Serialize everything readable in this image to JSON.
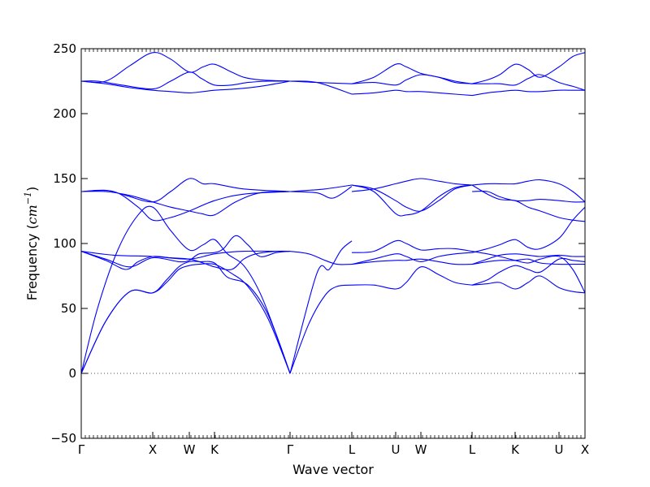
{
  "chart_data": {
    "type": "line",
    "xlabel": "Wave vector",
    "ylabel_main": "Frequency (",
    "ylabel_unit_base": "cm",
    "ylabel_unit_sup": "−1",
    "ylabel_close": ")",
    "ylim": [
      -50,
      250
    ],
    "yticks": [
      -50,
      0,
      50,
      100,
      150,
      200,
      250
    ],
    "grid": false,
    "zero_line": true,
    "line_color": "#0000ff",
    "zero_line_color": "#555555",
    "xlim": [
      0,
      620
    ],
    "xticks": [
      {
        "x": 0,
        "label": "Γ"
      },
      {
        "x": 88,
        "label": "X"
      },
      {
        "x": 133,
        "label": "W"
      },
      {
        "x": 164,
        "label": "K"
      },
      {
        "x": 257,
        "label": "Γ"
      },
      {
        "x": 333,
        "label": "L"
      },
      {
        "x": 387,
        "label": "U"
      },
      {
        "x": 418,
        "label": "W"
      },
      {
        "x": 481,
        "label": "L"
      },
      {
        "x": 534,
        "label": "K"
      },
      {
        "x": 588,
        "label": "U"
      },
      {
        "x": 620,
        "label": "X"
      }
    ],
    "series": [
      {
        "x": [
          0,
          30,
          60,
          88,
          105,
          120,
          133,
          145,
          164,
          185,
          205,
          230,
          257
        ],
        "y": [
          0,
          40,
          63,
          62,
          70,
          80,
          83,
          84,
          84,
          77,
          67,
          42,
          0
        ]
      },
      {
        "x": [
          0,
          30,
          60,
          88,
          105,
          120,
          133,
          145,
          164,
          180,
          205,
          230,
          257
        ],
        "y": [
          0,
          40,
          63,
          62,
          72,
          82,
          86,
          86,
          85,
          74,
          68,
          45,
          0
        ]
      },
      {
        "x": [
          0,
          20,
          45,
          70,
          88,
          110,
          133,
          150,
          164,
          180,
          200,
          220,
          240,
          257
        ],
        "y": [
          0,
          50,
          95,
          122,
          128,
          110,
          95,
          99,
          103,
          92,
          83,
          62,
          30,
          0
        ]
      },
      {
        "x": [
          0,
          30,
          55,
          70,
          88,
          110,
          133,
          150,
          164,
          185,
          200,
          215,
          240,
          257
        ],
        "y": [
          94,
          87,
          80,
          86,
          90,
          89,
          88,
          85,
          82,
          80,
          88,
          92,
          94,
          94
        ]
      },
      {
        "x": [
          0,
          30,
          60,
          88,
          120,
          133,
          145,
          164,
          175,
          190,
          205,
          220,
          240,
          257
        ],
        "y": [
          94,
          88,
          82,
          89,
          86,
          87,
          92,
          93,
          96,
          106,
          99,
          90,
          93,
          94
        ]
      },
      {
        "x": [
          0,
          40,
          88,
          133,
          164,
          200,
          257
        ],
        "y": [
          94,
          91,
          90,
          88,
          92,
          94,
          94
        ]
      },
      {
        "x": [
          0,
          30,
          60,
          88,
          110,
          133,
          148,
          164,
          190,
          220,
          257
        ],
        "y": [
          140,
          140,
          137,
          132,
          128,
          125,
          123,
          122,
          132,
          139,
          140
        ]
      },
      {
        "x": [
          0,
          30,
          55,
          88,
          110,
          133,
          150,
          164,
          200,
          257
        ],
        "y": [
          140,
          141,
          137,
          132,
          140,
          150,
          146,
          146,
          142,
          140
        ]
      },
      {
        "x": [
          0,
          40,
          70,
          88,
          110,
          133,
          164,
          200,
          257
        ],
        "y": [
          140,
          140,
          128,
          118,
          120,
          125,
          133,
          138,
          140
        ]
      },
      {
        "x": [
          0,
          30,
          60,
          88,
          110,
          133,
          150,
          164,
          185,
          200,
          220,
          257
        ],
        "y": [
          225,
          225,
          237,
          247,
          242,
          232,
          236,
          238,
          232,
          228,
          226,
          225
        ]
      },
      {
        "x": [
          0,
          20,
          50,
          88,
          110,
          133,
          148,
          164,
          185,
          205,
          230,
          257
        ],
        "y": [
          225,
          225,
          222,
          219,
          225,
          232,
          227,
          222,
          222,
          224,
          225,
          225
        ]
      },
      {
        "x": [
          0,
          30,
          60,
          88,
          110,
          133,
          150,
          164,
          190,
          220,
          257
        ],
        "y": [
          225,
          223,
          220,
          218,
          217,
          216,
          217,
          218,
          219,
          221,
          225
        ]
      },
      {
        "x": [
          257,
          280,
          300,
          315,
          333
        ],
        "y": [
          0,
          38,
          60,
          67,
          68
        ]
      },
      {
        "x": [
          257,
          290,
          305,
          320,
          333
        ],
        "y": [
          0,
          77,
          80,
          95,
          102
        ]
      },
      {
        "x": [
          257,
          280,
          300,
          315,
          333
        ],
        "y": [
          94,
          92,
          87,
          84,
          84
        ]
      },
      {
        "x": [
          257,
          290,
          310,
          333
        ],
        "y": [
          140,
          139,
          135,
          144
        ]
      },
      {
        "x": [
          257,
          280,
          300,
          333
        ],
        "y": [
          140,
          141,
          142,
          145
        ]
      },
      {
        "x": [
          257,
          290,
          333
        ],
        "y": [
          225,
          224,
          223
        ]
      },
      {
        "x": [
          257,
          290,
          333
        ],
        "y": [
          225,
          224,
          215
        ]
      },
      {
        "x": [
          333,
          360,
          387,
          400,
          418,
          440,
          460,
          481
        ],
        "y": [
          68,
          68,
          65,
          70,
          82,
          76,
          70,
          68
        ]
      },
      {
        "x": [
          333,
          360,
          387,
          400,
          418,
          440,
          460,
          481
        ],
        "y": [
          93,
          94,
          102,
          100,
          95,
          96,
          96,
          94
        ]
      },
      {
        "x": [
          333,
          360,
          387,
          400,
          418,
          440,
          460,
          481
        ],
        "y": [
          84,
          86,
          87,
          87,
          88,
          86,
          84,
          84
        ]
      },
      {
        "x": [
          333,
          360,
          387,
          400,
          418,
          440,
          460,
          481
        ],
        "y": [
          84,
          88,
          92,
          90,
          86,
          90,
          92,
          93
        ]
      },
      {
        "x": [
          333,
          360,
          387,
          400,
          418,
          440,
          460,
          481
        ],
        "y": [
          145,
          142,
          133,
          128,
          125,
          133,
          142,
          145
        ]
      },
      {
        "x": [
          333,
          360,
          387,
          400,
          418,
          440,
          460,
          481
        ],
        "y": [
          145,
          140,
          123,
          122,
          125,
          136,
          143,
          145
        ]
      },
      {
        "x": [
          333,
          360,
          387,
          400,
          418,
          440,
          460,
          481
        ],
        "y": [
          140,
          142,
          146,
          148,
          150,
          148,
          146,
          145
        ]
      },
      {
        "x": [
          333,
          360,
          387,
          400,
          418,
          440,
          460,
          481
        ],
        "y": [
          223,
          228,
          238,
          236,
          231,
          228,
          224,
          223
        ]
      },
      {
        "x": [
          333,
          360,
          387,
          400,
          418,
          440,
          460,
          481
        ],
        "y": [
          223,
          224,
          222,
          226,
          230,
          228,
          225,
          223
        ]
      },
      {
        "x": [
          333,
          360,
          387,
          400,
          418,
          440,
          460,
          481
        ],
        "y": [
          215,
          216,
          218,
          217,
          217,
          216,
          215,
          214
        ]
      },
      {
        "x": [
          481,
          500,
          515,
          534,
          550,
          565,
          588,
          605,
          620
        ],
        "y": [
          68,
          69,
          70,
          65,
          70,
          75,
          66,
          63,
          62
        ]
      },
      {
        "x": [
          481,
          500,
          515,
          534,
          550,
          565,
          588,
          605,
          620
        ],
        "y": [
          68,
          72,
          78,
          83,
          80,
          78,
          88,
          87,
          86
        ]
      },
      {
        "x": [
          481,
          500,
          515,
          534,
          550,
          565,
          588,
          605,
          620
        ],
        "y": [
          84,
          88,
          91,
          92,
          91,
          90,
          91,
          90,
          90
        ]
      },
      {
        "x": [
          481,
          500,
          515,
          534,
          550,
          565,
          588,
          605,
          620
        ],
        "y": [
          93,
          96,
          99,
          103,
          97,
          96,
          104,
          118,
          128
        ]
      },
      {
        "x": [
          481,
          500,
          515,
          534,
          550,
          565,
          588,
          605,
          620
        ],
        "y": [
          84,
          86,
          87,
          87,
          88,
          85,
          84,
          84,
          84
        ]
      },
      {
        "x": [
          481,
          500,
          515,
          534,
          550,
          565,
          588,
          605,
          620
        ],
        "y": [
          94,
          92,
          90,
          87,
          85,
          88,
          90,
          80,
          62
        ]
      },
      {
        "x": [
          481,
          500,
          515,
          534,
          550,
          565,
          588,
          605,
          620
        ],
        "y": [
          145,
          138,
          134,
          133,
          128,
          125,
          120,
          118,
          117
        ]
      },
      {
        "x": [
          481,
          500,
          515,
          534,
          550,
          565,
          588,
          605,
          620
        ],
        "y": [
          140,
          140,
          136,
          133,
          133,
          134,
          133,
          132,
          132
        ]
      },
      {
        "x": [
          481,
          500,
          515,
          534,
          550,
          565,
          588,
          605,
          620
        ],
        "y": [
          145,
          146,
          146,
          146,
          148,
          149,
          146,
          140,
          132
        ]
      },
      {
        "x": [
          481,
          500,
          515,
          534,
          550,
          565,
          588,
          605,
          620
        ],
        "y": [
          223,
          226,
          230,
          238,
          234,
          228,
          236,
          244,
          247
        ]
      },
      {
        "x": [
          481,
          500,
          515,
          534,
          550,
          565,
          588,
          605,
          620
        ],
        "y": [
          223,
          223,
          223,
          222,
          227,
          230,
          224,
          221,
          218
        ]
      },
      {
        "x": [
          481,
          500,
          515,
          534,
          550,
          565,
          588,
          605,
          620
        ],
        "y": [
          214,
          216,
          217,
          218,
          217,
          217,
          218,
          218,
          218
        ]
      }
    ]
  }
}
